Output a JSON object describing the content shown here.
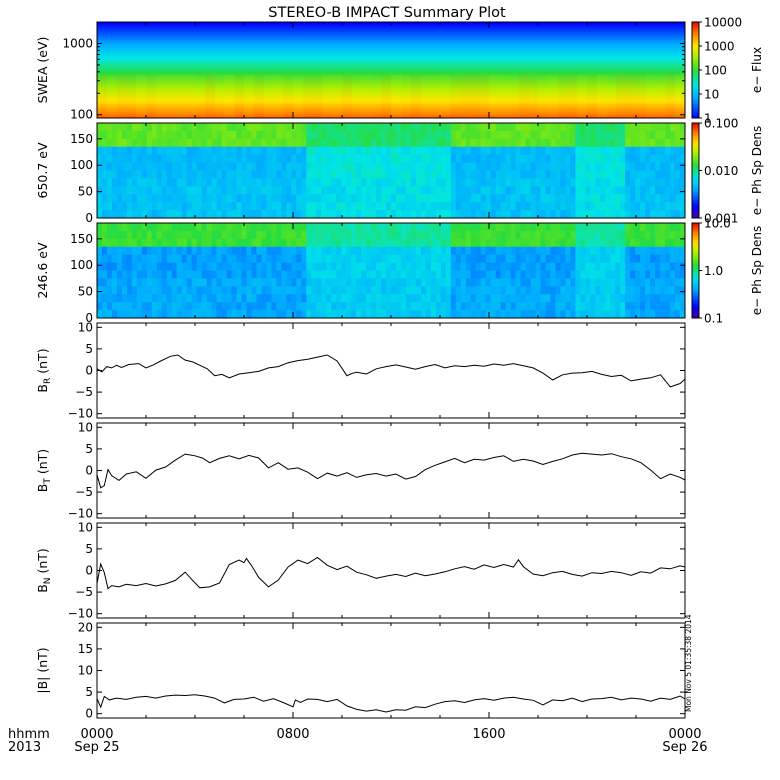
{
  "title": "STEREO-B IMPACT Summary Plot",
  "bottom_labels": {
    "time_format": "hhmm",
    "year": "2013",
    "stamp": "Mon Nov  5 01:35:38 2014"
  },
  "colors": {
    "line": "#000000",
    "panel_border": "#000000",
    "background": "#ffffff"
  },
  "chart_data": [
    {
      "type": "heatmap",
      "ylabel": "SWEA (eV)",
      "yscale": "log",
      "ylim": [
        90,
        2000
      ],
      "ytick_labels": [
        "100",
        "1000"
      ],
      "colorbar": {
        "label": "e− Flux",
        "scale": "log",
        "range": [
          1,
          10000
        ],
        "tick_labels": [
          "1",
          "10",
          "100",
          "1000",
          "10000"
        ]
      },
      "description_of_values": "electron flux decreasing with energy; ~3000 near 100 eV, ~1 near 2000 eV"
    },
    {
      "type": "heatmap",
      "ylabel": "650.7 eV",
      "ylim": [
        0,
        180
      ],
      "ytick_labels": [
        "0",
        "50",
        "100",
        "150"
      ],
      "colorbar": {
        "label": "e− Ph Sp Dens",
        "scale": "log",
        "range": [
          0.001,
          0.1
        ],
        "tick_labels": [
          "0.001",
          "0.010",
          "0.100"
        ]
      }
    },
    {
      "type": "heatmap",
      "ylabel": "246.6 eV",
      "ylim": [
        0,
        180
      ],
      "ytick_labels": [
        "0",
        "50",
        "100",
        "150"
      ],
      "colorbar": {
        "label": "e− Ph Sp Dens",
        "scale": "log",
        "range": [
          0.1,
          10
        ],
        "tick_labels": [
          "0.1",
          "1.0",
          "10.0"
        ]
      }
    },
    {
      "type": "line",
      "ylabel": "B",
      "ylabel_sub": "R",
      "ylabel_unit": " (nT)",
      "ylim": [
        -11,
        11
      ],
      "ytick_values": [
        -10,
        -5,
        0,
        5,
        10
      ],
      "ytick_labels": [
        "−10",
        "−5",
        "0",
        "5",
        "10"
      ],
      "x_hours": [
        0,
        0.2,
        0.4,
        0.6,
        0.8,
        1.0,
        1.3,
        1.7,
        2.0,
        2.3,
        2.6,
        3.0,
        3.3,
        3.6,
        3.9,
        4.2,
        4.5,
        4.8,
        5.1,
        5.4,
        5.8,
        6.2,
        6.6,
        7.0,
        7.4,
        7.8,
        8.2,
        8.6,
        9.0,
        9.4,
        9.8,
        10.2,
        10.4,
        10.6,
        11.0,
        11.4,
        11.8,
        12.2,
        12.6,
        13.0,
        13.4,
        13.8,
        14.2,
        14.6,
        15.0,
        15.4,
        15.8,
        16.2,
        16.6,
        17.0,
        17.4,
        17.8,
        18.2,
        18.6,
        19.0,
        19.4,
        19.8,
        20.2,
        20.6,
        21.0,
        21.4,
        21.8,
        22.2,
        22.6,
        23.0,
        23.4,
        23.8,
        24.0
      ],
      "y_values": [
        0.4,
        -0.3,
        0.9,
        0.6,
        1.2,
        0.7,
        1.4,
        1.6,
        0.6,
        1.3,
        2.2,
        3.3,
        3.6,
        2.4,
        2.0,
        1.2,
        0.4,
        -1.2,
        -0.9,
        -1.7,
        -0.8,
        -0.5,
        -0.2,
        0.6,
        0.9,
        1.8,
        2.3,
        2.6,
        3.1,
        3.6,
        2.2,
        -1.2,
        -0.7,
        -0.4,
        -0.8,
        0.4,
        0.9,
        1.3,
        0.8,
        0.3,
        0.9,
        1.4,
        0.6,
        1.1,
        0.9,
        1.2,
        1.0,
        1.5,
        1.2,
        1.6,
        1.1,
        0.6,
        -0.6,
        -2.2,
        -1.0,
        -0.6,
        -0.5,
        -0.2,
        -0.9,
        -1.4,
        -1.1,
        -2.4,
        -2.0,
        -1.7,
        -1.0,
        -3.8,
        -3.0,
        -2.0
      ]
    },
    {
      "type": "line",
      "ylabel": "B",
      "ylabel_sub": "T",
      "ylabel_unit": " (nT)",
      "ylim": [
        -11,
        11
      ],
      "ytick_values": [
        -10,
        -5,
        0,
        5,
        10
      ],
      "ytick_labels": [
        "−10",
        "−5",
        "0",
        "5",
        "10"
      ],
      "x_hours": [
        0,
        0.15,
        0.3,
        0.45,
        0.6,
        0.9,
        1.2,
        1.6,
        2.0,
        2.4,
        2.8,
        3.2,
        3.6,
        4.0,
        4.3,
        4.6,
        5.0,
        5.4,
        5.8,
        6.2,
        6.6,
        7.0,
        7.4,
        7.8,
        8.2,
        8.6,
        9.0,
        9.4,
        9.8,
        10.2,
        10.6,
        11.0,
        11.4,
        11.8,
        12.2,
        12.6,
        13.0,
        13.4,
        13.8,
        14.2,
        14.6,
        15.0,
        15.4,
        15.8,
        16.2,
        16.6,
        17.0,
        17.4,
        17.8,
        18.2,
        18.6,
        19.0,
        19.4,
        19.8,
        20.2,
        20.6,
        21.0,
        21.4,
        21.8,
        22.2,
        22.6,
        23.0,
        23.4,
        23.8,
        24.0
      ],
      "y_values": [
        -1.0,
        -4.0,
        -3.5,
        0.2,
        -1.2,
        -2.3,
        -0.8,
        -0.3,
        -1.8,
        0.1,
        0.8,
        2.4,
        3.8,
        3.4,
        2.9,
        1.8,
        2.8,
        3.4,
        2.7,
        3.5,
        2.9,
        0.6,
        1.8,
        0.3,
        0.6,
        -0.4,
        -1.9,
        -0.6,
        -1.3,
        -0.5,
        -1.6,
        -1.0,
        -0.7,
        -1.3,
        -0.8,
        -2.0,
        -1.4,
        0.2,
        1.2,
        2.0,
        2.8,
        1.8,
        2.6,
        2.4,
        3.0,
        3.4,
        2.1,
        2.6,
        2.2,
        1.4,
        2.1,
        2.7,
        3.6,
        4.0,
        3.8,
        3.6,
        3.9,
        3.2,
        2.7,
        1.8,
        0.1,
        -1.9,
        -0.8,
        -1.6,
        -2.2
      ]
    },
    {
      "type": "line",
      "ylabel": "B",
      "ylabel_sub": "N",
      "ylabel_unit": " (nT)",
      "ylim": [
        -11,
        11
      ],
      "ytick_values": [
        -10,
        -5,
        0,
        5,
        10
      ],
      "ytick_labels": [
        "−10",
        "−5",
        "0",
        "5",
        "10"
      ],
      "x_hours": [
        0,
        0.15,
        0.3,
        0.45,
        0.6,
        0.9,
        1.2,
        1.6,
        2.0,
        2.4,
        2.8,
        3.2,
        3.6,
        3.9,
        4.2,
        4.6,
        5.0,
        5.4,
        5.8,
        6.0,
        6.1,
        6.3,
        6.6,
        7.0,
        7.4,
        7.8,
        8.2,
        8.6,
        9.0,
        9.4,
        9.8,
        10.2,
        10.6,
        11.0,
        11.4,
        11.8,
        12.2,
        12.6,
        13.0,
        13.4,
        13.8,
        14.2,
        14.6,
        15.0,
        15.4,
        15.8,
        16.2,
        16.6,
        17.0,
        17.2,
        17.4,
        17.8,
        18.2,
        18.6,
        19.0,
        19.4,
        19.8,
        20.2,
        20.6,
        21.0,
        21.4,
        21.8,
        22.2,
        22.6,
        23.0,
        23.4,
        23.8,
        24.0
      ],
      "y_values": [
        -3.0,
        1.5,
        -0.5,
        -4.2,
        -3.5,
        -3.8,
        -3.2,
        -3.5,
        -3.0,
        -3.6,
        -3.1,
        -2.3,
        -0.4,
        -2.3,
        -4.0,
        -3.8,
        -2.9,
        1.4,
        2.4,
        1.8,
        2.8,
        1.2,
        -1.6,
        -3.8,
        -2.2,
        0.8,
        2.4,
        1.6,
        3.0,
        1.2,
        0.2,
        1.0,
        -0.4,
        -1.0,
        -1.8,
        -1.3,
        -0.9,
        -1.4,
        -0.6,
        -1.2,
        -0.8,
        -0.3,
        0.4,
        0.9,
        0.3,
        1.3,
        0.7,
        1.4,
        0.8,
        2.5,
        0.9,
        -0.8,
        -1.2,
        -0.5,
        -0.2,
        -0.9,
        -1.3,
        -0.5,
        -0.7,
        -0.2,
        -0.5,
        -1.1,
        -0.3,
        -0.6,
        0.6,
        0.4,
        1.1,
        0.8
      ]
    },
    {
      "type": "line",
      "ylabel": "|B| (nT)",
      "ylim": [
        -1,
        21
      ],
      "ytick_values": [
        0,
        5,
        10,
        15,
        20
      ],
      "ytick_labels": [
        "0",
        "5",
        "10",
        "15",
        "20"
      ],
      "x_hours": [
        0,
        0.15,
        0.3,
        0.5,
        0.8,
        1.2,
        1.6,
        2.0,
        2.4,
        2.8,
        3.2,
        3.6,
        4.0,
        4.4,
        4.8,
        5.2,
        5.6,
        6.0,
        6.4,
        6.8,
        7.2,
        7.6,
        8.0,
        8.1,
        8.3,
        8.6,
        9.0,
        9.4,
        9.8,
        10.2,
        10.6,
        11.0,
        11.4,
        11.8,
        12.2,
        12.6,
        13.0,
        13.4,
        13.8,
        14.2,
        14.6,
        15.0,
        15.4,
        15.8,
        16.2,
        16.6,
        17.0,
        17.4,
        17.8,
        18.2,
        18.6,
        19.0,
        19.4,
        19.8,
        20.2,
        20.6,
        21.0,
        21.4,
        21.8,
        22.2,
        22.6,
        23.0,
        23.4,
        23.8,
        24.0
      ],
      "y_values": [
        3.5,
        1.5,
        4.0,
        3.2,
        3.6,
        3.3,
        3.8,
        4.0,
        3.6,
        4.1,
        4.3,
        4.2,
        4.4,
        4.1,
        3.6,
        2.5,
        3.3,
        3.4,
        3.8,
        2.9,
        3.5,
        2.6,
        1.6,
        3.2,
        2.6,
        3.4,
        3.3,
        2.8,
        3.3,
        1.8,
        1.0,
        0.6,
        0.9,
        0.4,
        0.9,
        0.8,
        1.6,
        1.4,
        2.2,
        2.8,
        3.0,
        2.6,
        3.2,
        3.5,
        3.1,
        3.6,
        3.8,
        3.4,
        3.1,
        2.0,
        3.2,
        3.0,
        3.6,
        2.8,
        3.4,
        3.5,
        3.8,
        3.2,
        3.6,
        3.4,
        2.9,
        3.6,
        3.3,
        4.1,
        3.4
      ]
    }
  ],
  "x_axis": {
    "range_hours": [
      0,
      24
    ],
    "ticks": [
      {
        "hour": 0,
        "hhmm": "0000",
        "date": "Sep 25"
      },
      {
        "hour": 8,
        "hhmm": "0800",
        "date": ""
      },
      {
        "hour": 16,
        "hhmm": "1600",
        "date": ""
      },
      {
        "hour": 24,
        "hhmm": "0000",
        "date": "Sep 26"
      }
    ]
  }
}
